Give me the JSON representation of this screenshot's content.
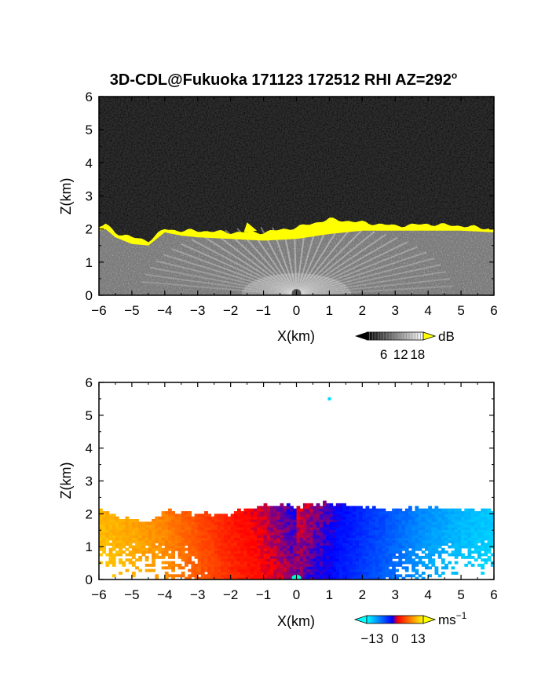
{
  "title": "3D-CDL@Fukuoka 171123 172512 RHI AZ=292",
  "title_sup": "o",
  "chart_data": [
    {
      "type": "heatmap",
      "id": "snr",
      "xlabel": "X(km)",
      "ylabel": "Z(km)",
      "xlim": [
        -6,
        6
      ],
      "ylim": [
        0,
        6
      ],
      "xticks": [
        "-6",
        "-5",
        "-4",
        "-3",
        "-2",
        "-1",
        "0",
        "1",
        "2",
        "3",
        "4",
        "5",
        "6"
      ],
      "yticks": [
        "0",
        "1",
        "2",
        "3",
        "4",
        "5",
        "6"
      ],
      "colorbar": {
        "label": "dB",
        "ticks": [
          "6",
          "12",
          "18"
        ],
        "tick_values": [
          6,
          12,
          18
        ],
        "range": [
          0,
          20
        ],
        "colors": [
          "#000000",
          "#ffffff"
        ],
        "over_color": "#ffff00"
      },
      "background_color": "#2e2e2e",
      "boundary_layer_top_km": [
        [
          -6,
          2.0
        ],
        [
          -5.8,
          2.05
        ],
        [
          -5.5,
          1.8
        ],
        [
          -5,
          1.6
        ],
        [
          -4.5,
          1.55
        ],
        [
          -4,
          1.95
        ],
        [
          -3.5,
          1.85
        ],
        [
          -3,
          1.8
        ],
        [
          -2,
          1.75
        ],
        [
          -1,
          1.7
        ],
        [
          0,
          1.75
        ],
        [
          1,
          1.9
        ],
        [
          2,
          2.0
        ],
        [
          3,
          2.0
        ],
        [
          4,
          2.0
        ],
        [
          5,
          2.0
        ],
        [
          6,
          1.95
        ]
      ],
      "echo_layer_top_km": [
        [
          -6,
          2.05
        ],
        [
          -5.8,
          2.15
        ],
        [
          -5.5,
          1.9
        ],
        [
          -5,
          1.75
        ],
        [
          -4.5,
          1.65
        ],
        [
          -4,
          2.0
        ],
        [
          -3.5,
          1.95
        ],
        [
          -3,
          1.95
        ],
        [
          -2,
          1.9
        ],
        [
          -1,
          1.9
        ],
        [
          0,
          2.05
        ],
        [
          1,
          2.3
        ],
        [
          2,
          2.2
        ],
        [
          3,
          2.1
        ],
        [
          4,
          2.15
        ],
        [
          5,
          2.1
        ],
        [
          6,
          2.0
        ]
      ]
    },
    {
      "type": "heatmap",
      "id": "velocity",
      "xlabel": "X(km)",
      "ylabel": "Z(km)",
      "xlim": [
        -6,
        6
      ],
      "ylim": [
        0,
        6
      ],
      "xticks": [
        "-6",
        "-5",
        "-4",
        "-3",
        "-2",
        "-1",
        "0",
        "1",
        "2",
        "3",
        "4",
        "5",
        "6"
      ],
      "yticks": [
        "0",
        "1",
        "2",
        "3",
        "4",
        "5",
        "6"
      ],
      "colorbar": {
        "label": "ms",
        "label_sup": "−1",
        "ticks": [
          "−13",
          "0",
          "13"
        ],
        "tick_values": [
          -13,
          0,
          13
        ],
        "range": [
          -16,
          16
        ],
        "colors": [
          "#00ffff",
          "#0000ff",
          "#ff0000",
          "#ffff00"
        ],
        "under_color": "#00ffff",
        "over_color": "#ffff00"
      },
      "radial_velocity_mps": [
        [
          -6,
          13
        ],
        [
          -5,
          12
        ],
        [
          -4,
          10
        ],
        [
          -3,
          7
        ],
        [
          -2,
          4
        ],
        [
          -1,
          2
        ],
        [
          0,
          0
        ],
        [
          1,
          -2
        ],
        [
          2,
          -5
        ],
        [
          3,
          -8
        ],
        [
          4,
          -11
        ],
        [
          5,
          -13
        ],
        [
          6,
          -14
        ]
      ],
      "echo_top_km": [
        [
          -6,
          2.15
        ],
        [
          -5.5,
          1.9
        ],
        [
          -5,
          1.8
        ],
        [
          -4.5,
          1.7
        ],
        [
          -4,
          2.05
        ],
        [
          -3,
          1.95
        ],
        [
          -2,
          1.95
        ],
        [
          -1.5,
          2.1
        ],
        [
          -1,
          2.2
        ],
        [
          0,
          2.2
        ],
        [
          0.5,
          2.25
        ],
        [
          1,
          2.3
        ],
        [
          2,
          2.2
        ],
        [
          3,
          2.1
        ],
        [
          4,
          2.15
        ],
        [
          5,
          2.1
        ],
        [
          6,
          2.1
        ]
      ],
      "isolated_echo_km": [
        [
          1.0,
          5.5
        ]
      ]
    }
  ]
}
